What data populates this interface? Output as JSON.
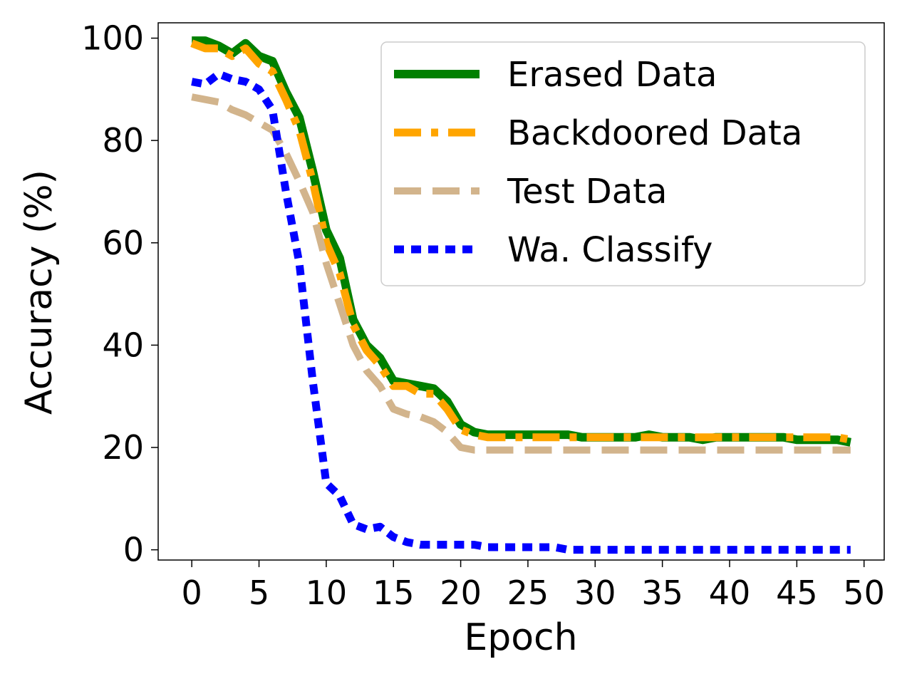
{
  "chart_data": {
    "type": "line",
    "title": "",
    "xlabel": "Epoch",
    "ylabel": "Accuracy (%)",
    "xlim": [
      -2.5,
      51.5
    ],
    "ylim": [
      -2,
      103
    ],
    "xticks": [
      0,
      5,
      10,
      15,
      20,
      25,
      30,
      35,
      40,
      45,
      50
    ],
    "yticks": [
      0,
      20,
      40,
      60,
      80,
      100
    ],
    "grid": false,
    "legend_position": "top-right",
    "x": [
      0,
      1,
      2,
      3,
      4,
      5,
      6,
      7,
      8,
      9,
      10,
      11,
      12,
      13,
      14,
      15,
      16,
      17,
      18,
      19,
      20,
      21,
      22,
      23,
      24,
      25,
      26,
      27,
      28,
      29,
      30,
      31,
      32,
      33,
      34,
      35,
      36,
      37,
      38,
      39,
      40,
      41,
      42,
      43,
      44,
      45,
      46,
      47,
      48,
      49
    ],
    "series": [
      {
        "name": "Erased Data",
        "color": "#008000",
        "style": "solid",
        "values": [
          99.5,
          99.5,
          98.5,
          97,
          99,
          96.5,
          95.5,
          89.5,
          84.5,
          74,
          62.5,
          57,
          45,
          40,
          37.5,
          33,
          32.5,
          32,
          31.5,
          29,
          24.5,
          23,
          22.5,
          22.5,
          22.5,
          22.5,
          22.5,
          22.5,
          22.5,
          22,
          22,
          22,
          22,
          22,
          22.5,
          22,
          22,
          22,
          21.5,
          22,
          22,
          22,
          22,
          22,
          22,
          21.5,
          21.5,
          21.5,
          21.5,
          21
        ]
      },
      {
        "name": "Backdoored Data",
        "color": "#ffa500",
        "style": "dashdot",
        "values": [
          99,
          98,
          98,
          96.5,
          98,
          95,
          93.5,
          88,
          82,
          72,
          60,
          54,
          44,
          39,
          36,
          32,
          32,
          30.5,
          30.5,
          27.5,
          23.5,
          22.5,
          22,
          22,
          22,
          22,
          22,
          22,
          22,
          22,
          22,
          22,
          22,
          22,
          22,
          22,
          22,
          22,
          22,
          22,
          22,
          22,
          22,
          22,
          22,
          22,
          22,
          22,
          22,
          21.5
        ]
      },
      {
        "name": "Test Data",
        "color": "#d2b48c",
        "style": "dashed",
        "values": [
          88.5,
          88,
          87.5,
          86,
          85,
          83.5,
          82,
          77.5,
          72,
          66,
          56,
          48,
          40,
          35,
          32,
          27.5,
          26.5,
          26,
          25,
          23,
          20,
          19.5,
          19.5,
          19.5,
          19.5,
          19.5,
          19.5,
          19.5,
          19.5,
          19.5,
          19.5,
          19.5,
          19.5,
          19.5,
          19.5,
          19.5,
          19.5,
          19.5,
          19.5,
          19.5,
          19.5,
          19.5,
          19.5,
          19.5,
          19.5,
          19.5,
          19.5,
          19.5,
          19.5,
          19.5
        ]
      },
      {
        "name": "Wa. Classify",
        "color": "#0000ff",
        "style": "dotted",
        "values": [
          91.5,
          91,
          93,
          92,
          91.5,
          90,
          86,
          70,
          56,
          33,
          13,
          10.5,
          5,
          4,
          4.5,
          2.5,
          1.5,
          1,
          1,
          1,
          1,
          1,
          0.5,
          0.5,
          0.5,
          0.5,
          0.5,
          0.5,
          0,
          0,
          0,
          0,
          0,
          0,
          0,
          0,
          0,
          0,
          0,
          0,
          0,
          0,
          0,
          0,
          0,
          0,
          0,
          0,
          0,
          0
        ]
      }
    ]
  }
}
